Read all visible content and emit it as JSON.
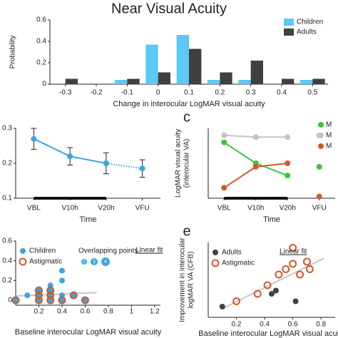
{
  "chart_data": [
    {
      "type": "bar",
      "title": "Near Visual Acuity",
      "xlabel": "Change in interocular LogMAR visual acuity",
      "ylabel": "Probability",
      "categories": [
        "-0.3",
        "-0.2",
        "-0.1",
        "0",
        "0.1",
        "0.2",
        "0.3",
        "0.4",
        "0.5"
      ],
      "series": [
        {
          "name": "Children",
          "color": "#5bc8f5",
          "values": [
            0,
            0,
            0.04,
            0.37,
            0.46,
            0.04,
            0.04,
            0,
            0.04
          ]
        },
        {
          "name": "Adults",
          "color": "#404040",
          "values": [
            0.05,
            0,
            0.05,
            0.11,
            0.33,
            0.11,
            0.22,
            0.05,
            0.05
          ]
        }
      ],
      "ylim": [
        0,
        0.6
      ],
      "yticks": [
        0,
        0.2,
        0.4,
        0.6
      ],
      "legend": "upper right"
    },
    {
      "type": "line",
      "xlabel": "Time",
      "categories": [
        "VBL",
        "V10h",
        "V20h",
        "VFU"
      ],
      "series": [
        {
          "color": "#3aa6e0",
          "values": [
            0.27,
            0.22,
            0.2,
            0.185
          ],
          "errors": [
            0.03,
            0.025,
            0.03,
            0.025
          ]
        }
      ],
      "ylim": [
        0.1,
        0.3
      ],
      "yticks": [
        0.1,
        0.2,
        0.3
      ],
      "last_segment": "dotted"
    },
    {
      "type": "line",
      "panel": "c",
      "ylabel": [
        "LogMAR visual acuity",
        "(interocular VA)"
      ],
      "xlabel": "Time",
      "categories": [
        "VBL",
        "V10h",
        "V20h",
        "VFU"
      ],
      "series": [
        {
          "name": "M",
          "color": "#3cc43c",
          "values": [
            0.26,
            0.2,
            0.165,
            0.19
          ]
        },
        {
          "name": "M",
          "color": "#c4c4c4",
          "values": [
            0.28,
            0.275,
            0.275,
            0.28
          ]
        },
        {
          "name": "M",
          "color": "#d4572a",
          "values": [
            0.13,
            0.19,
            0.2,
            0.105
          ]
        }
      ],
      "ylim": [
        0.1,
        0.3
      ],
      "last_segment": "none",
      "legend": "upper right"
    },
    {
      "type": "scatter",
      "xlabel": "Baseline interocular LogMAR visual acuity",
      "series": [
        {
          "name": "Children",
          "color": "#3aa6e0",
          "marker": "filled",
          "x": [
            0,
            0.1,
            0.2,
            0.2,
            0.2,
            0.3,
            0.3,
            0.3,
            0.3,
            0.4,
            0.4,
            0.4,
            0.4,
            0.5,
            0.6
          ],
          "y": [
            0,
            0.05,
            0,
            0.05,
            0.1,
            0,
            0.05,
            0.1,
            0.15,
            0,
            0.05,
            0.2,
            0.3,
            0.05,
            0
          ]
        },
        {
          "name": "Astigmatic",
          "color": "#d4572a",
          "marker": "ring",
          "x": [
            0,
            0.2,
            0.2,
            0.2,
            0.3,
            0.3,
            0.3,
            0.4,
            0.5,
            0.6
          ],
          "y": [
            0,
            0,
            0.05,
            0.1,
            0,
            0.05,
            0.1,
            0,
            0.05,
            0
          ]
        }
      ],
      "overlap_title": "Overlapping points",
      "overlap_counts": [
        2,
        3,
        4
      ],
      "fit_label": "Linear fit",
      "xlim": [
        0,
        1.25
      ],
      "xticks": [
        0.2,
        0.4,
        0.6,
        0.8,
        1,
        1.2
      ],
      "ylim": [
        -0.05,
        0.6
      ],
      "yticks": [
        0,
        0.2,
        0.4,
        0.6
      ]
    },
    {
      "type": "scatter",
      "panel": "e",
      "ylabel": [
        "Improvement in interocular",
        "logMAR VA (CFB)"
      ],
      "xlabel": "Baseline interocular LogMAR visual acuity",
      "series": [
        {
          "name": "Adults",
          "color": "#404040",
          "marker": "filled",
          "x": [
            0.1,
            0.45,
            0.48,
            0.62
          ],
          "y": [
            0,
            0.12,
            0.15,
            0.05
          ]
        },
        {
          "name": "Astigmatic",
          "color": "#d4572a",
          "marker": "ring",
          "x": [
            0.2,
            0.35,
            0.42,
            0.5,
            0.55,
            0.6,
            0.6,
            0.65,
            0.7,
            0.72
          ],
          "y": [
            0.05,
            0.12,
            0.2,
            0.3,
            0.35,
            0.4,
            0.55,
            0.3,
            0.42,
            0.35
          ]
        }
      ],
      "fit_label": "Linear fit",
      "xlim": [
        0,
        0.9
      ],
      "xticks": [
        0.2,
        0.4,
        0.6,
        0.8
      ],
      "ylim": [
        -0.1,
        0.6
      ]
    }
  ]
}
